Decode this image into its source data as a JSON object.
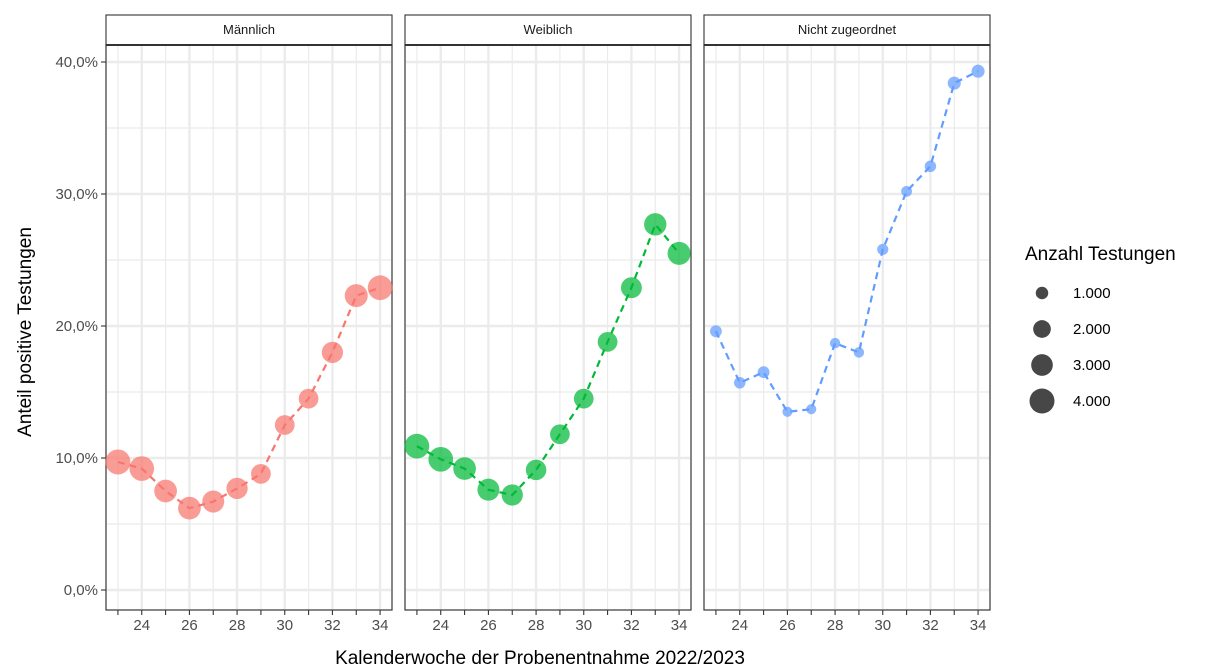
{
  "chart_data": {
    "type": "scatter",
    "xlabel": "Kalenderwoche der Probenentnahme 2022/2023",
    "ylabel": "Anteil positive Testungen",
    "xlim": [
      22.5,
      34.5
    ],
    "ylim": [
      0,
      40
    ],
    "x_ticks": [
      24,
      26,
      28,
      30,
      32,
      34
    ],
    "y_ticks": [
      0,
      10,
      20,
      30,
      40
    ],
    "y_tick_labels": [
      "0,0%",
      "10,0%",
      "20,0%",
      "30,0%",
      "40,0%"
    ],
    "grid": true,
    "line_style": "dashed",
    "legend": {
      "title": "Anzahl Testungen",
      "position": "right",
      "entries": [
        {
          "label": "1.000",
          "value": 1000
        },
        {
          "label": "2.000",
          "value": 2000
        },
        {
          "label": "3.000",
          "value": 3000
        },
        {
          "label": "4.000",
          "value": 4000
        }
      ]
    },
    "panels": [
      {
        "name": "Männlich",
        "color": "#F8766D",
        "x": [
          23,
          24,
          25,
          26,
          27,
          28,
          29,
          30,
          31,
          32,
          33,
          34
        ],
        "y": [
          9.7,
          9.2,
          7.5,
          6.2,
          6.7,
          7.7,
          8.8,
          12.5,
          14.5,
          18.0,
          22.3,
          22.9
        ],
        "n": [
          4000,
          3900,
          3300,
          3300,
          3100,
          2900,
          2500,
          2500,
          2500,
          2900,
          3400,
          3900
        ]
      },
      {
        "name": "Weiblich",
        "color": "#00BA38",
        "x": [
          23,
          24,
          25,
          26,
          27,
          28,
          29,
          30,
          31,
          32,
          33,
          34
        ],
        "y": [
          10.9,
          9.9,
          9.2,
          7.6,
          7.2,
          9.1,
          11.8,
          14.5,
          18.8,
          22.9,
          27.7,
          25.5
        ],
        "n": [
          3900,
          3900,
          3300,
          3100,
          2900,
          2700,
          2500,
          2500,
          2500,
          2800,
          3200,
          3400
        ]
      },
      {
        "name": "Nicht zugeordnet",
        "color": "#619CFF",
        "x": [
          23,
          24,
          25,
          26,
          27,
          28,
          29,
          30,
          31,
          32,
          33,
          34
        ],
        "y": [
          19.6,
          15.7,
          16.5,
          13.5,
          13.7,
          18.7,
          18.0,
          25.8,
          30.2,
          32.1,
          38.4,
          39.3
        ],
        "n": [
          900,
          850,
          900,
          650,
          650,
          700,
          700,
          800,
          750,
          850,
          1100,
          1100
        ]
      }
    ]
  }
}
